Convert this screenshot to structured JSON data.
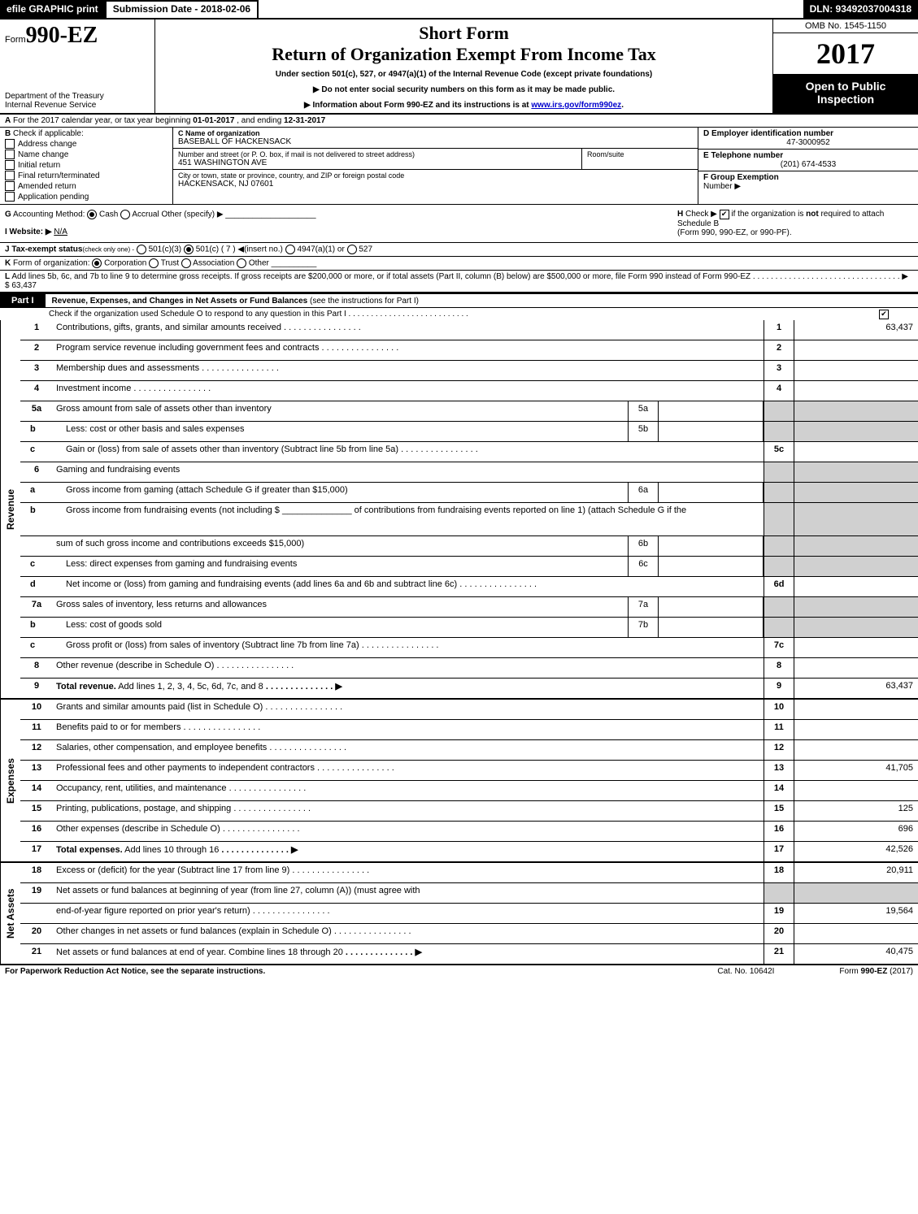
{
  "topbar": {
    "efile": "efile GRAPHIC print",
    "submission": "Submission Date - 2018-02-06",
    "dln": "DLN: 93492037004318"
  },
  "header": {
    "form_prefix": "Form",
    "form_num": "990-EZ",
    "dept1": "Department of the Treasury",
    "dept2": "Internal Revenue Service",
    "short_form": "Short Form",
    "return_title": "Return of Organization Exempt From Income Tax",
    "under_section": "Under section 501(c), 527, or 4947(a)(1) of the Internal Revenue Code (except private foundations)",
    "arrow1": "▶ Do not enter social security numbers on this form as it may be made public.",
    "arrow2_prefix": "▶ Information about Form 990-EZ and its instructions is at ",
    "arrow2_link": "www.irs.gov/form990ez",
    "arrow2_suffix": ".",
    "omb": "OMB No. 1545-1150",
    "year": "2017",
    "open_public1": "Open to Public",
    "open_public2": "Inspection"
  },
  "section_A": {
    "label": "A",
    "text_prefix": "For the 2017 calendar year, or tax year beginning ",
    "begin": "01-01-2017",
    "text_mid": ", and ending ",
    "end": "12-31-2017"
  },
  "section_B": {
    "label": "B",
    "title": "Check if applicable:",
    "items": [
      {
        "label": "Address change",
        "checked": false
      },
      {
        "label": "Name change",
        "checked": false
      },
      {
        "label": "Initial return",
        "checked": false
      },
      {
        "label": "Final return/terminated",
        "checked": false
      },
      {
        "label": "Amended return",
        "checked": false
      },
      {
        "label": "Application pending",
        "checked": false
      }
    ]
  },
  "section_C": {
    "name_label": "C Name of organization",
    "name_val": "BASEBALL OF HACKENSACK",
    "street_label": "Number and street (or P. O. box, if mail is not delivered to street address)",
    "street_val": "451 WASHINGTON AVE",
    "room_label": "Room/suite",
    "city_label": "City or town, state or province, country, and ZIP or foreign postal code",
    "city_val": "HACKENSACK, NJ  07601"
  },
  "section_D": {
    "label": "D Employer identification number",
    "val": "47-3000952"
  },
  "section_E": {
    "label": "E Telephone number",
    "val": "(201) 674-4533"
  },
  "section_F": {
    "label": "F Group Exemption",
    "label2": "Number  ▶"
  },
  "section_G": {
    "label": "G",
    "text": "Accounting Method:",
    "cash": "Cash",
    "accrual": "Accrual",
    "other": "Other (specify) ▶"
  },
  "section_H": {
    "label": "H",
    "text1": "Check ▶",
    "text2": "if the organization is ",
    "text3": "not",
    "text4": " required to attach Schedule B",
    "text5": "(Form 990, 990-EZ, or 990-PF)."
  },
  "section_I": {
    "label": "I Website: ▶",
    "val": "N/A"
  },
  "section_J": {
    "label": "J Tax-exempt status",
    "note": "(check only one) -",
    "o1": "501(c)(3)",
    "o2": "501(c) ( 7 ) ◀(insert no.)",
    "o3": "4947(a)(1) or",
    "o4": "527"
  },
  "section_K": {
    "label": "K",
    "text": "Form of organization:",
    "corp": "Corporation",
    "trust": "Trust",
    "assoc": "Association",
    "other": "Other"
  },
  "section_L": {
    "label": "L",
    "text": "Add lines 5b, 6c, and 7b to line 9 to determine gross receipts. If gross receipts are $200,000 or more, or if total assets (Part II, column (B) below) are $500,000 or more, file Form 990 instead of Form 990-EZ",
    "arrow": "▶",
    "amount": "$ 63,437"
  },
  "part1": {
    "label": "Part I",
    "title": "Revenue, Expenses, and Changes in Net Assets or Fund Balances ",
    "note": "(see the instructions for Part I)",
    "check_line": "Check if the organization used Schedule O to respond to any question in this Part I"
  },
  "sections": [
    {
      "side": "Revenue",
      "rows": [
        {
          "num": "1",
          "desc": "Contributions, gifts, grants, and similar amounts received",
          "boxnum": "1",
          "boxval": "63,437"
        },
        {
          "num": "2",
          "desc": "Program service revenue including government fees and contracts",
          "boxnum": "2",
          "boxval": ""
        },
        {
          "num": "3",
          "desc": "Membership dues and assessments",
          "boxnum": "3",
          "boxval": ""
        },
        {
          "num": "4",
          "desc": "Investment income",
          "boxnum": "4",
          "boxval": ""
        },
        {
          "num": "5a",
          "desc": "Gross amount from sale of assets other than inventory",
          "inner_num": "5a",
          "shaded_box": true
        },
        {
          "num": "b",
          "desc": "Less: cost or other basis and sales expenses",
          "inner_num": "5b",
          "shaded_box": true,
          "sub": true
        },
        {
          "num": "c",
          "desc": "Gain or (loss) from sale of assets other than inventory (Subtract line 5b from line 5a)",
          "boxnum": "5c",
          "boxval": "",
          "sub": true
        },
        {
          "num": "6",
          "desc": "Gaming and fundraising events",
          "shaded_box": true
        },
        {
          "num": "a",
          "desc": "Gross income from gaming (attach Schedule G if greater than $15,000)",
          "inner_num": "6a",
          "shaded_box": true,
          "sub": true
        },
        {
          "num": "b",
          "desc": "Gross income from fundraising events (not including $ ______________ of contributions from fundraising events reported on line 1) (attach Schedule G if the",
          "shaded_box": true,
          "sub": true,
          "tall": true
        },
        {
          "num": "",
          "desc": "sum of such gross income and contributions exceeds $15,000)",
          "inner_num": "6b",
          "shaded_box": true
        },
        {
          "num": "c",
          "desc": "Less: direct expenses from gaming and fundraising events",
          "inner_num": "6c",
          "shaded_box": true,
          "sub": true
        },
        {
          "num": "d",
          "desc": "Net income or (loss) from gaming and fundraising events (add lines 6a and 6b and subtract line 6c)",
          "boxnum": "6d",
          "boxval": "",
          "sub": true
        },
        {
          "num": "7a",
          "desc": "Gross sales of inventory, less returns and allowances",
          "inner_num": "7a",
          "shaded_box": true
        },
        {
          "num": "b",
          "desc": "Less: cost of goods sold",
          "inner_num": "7b",
          "shaded_box": true,
          "sub": true
        },
        {
          "num": "c",
          "desc": "Gross profit or (loss) from sales of inventory (Subtract line 7b from line 7a)",
          "boxnum": "7c",
          "boxval": "",
          "sub": true
        },
        {
          "num": "8",
          "desc": "Other revenue (describe in Schedule O)",
          "boxnum": "8",
          "boxval": ""
        },
        {
          "num": "9",
          "desc": "Total revenue. Add lines 1, 2, 3, 4, 5c, 6d, 7c, and 8",
          "boxnum": "9",
          "boxval": "63,437",
          "bold": true,
          "arrow": true
        }
      ]
    },
    {
      "side": "Expenses",
      "rows": [
        {
          "num": "10",
          "desc": "Grants and similar amounts paid (list in Schedule O)",
          "boxnum": "10",
          "boxval": ""
        },
        {
          "num": "11",
          "desc": "Benefits paid to or for members",
          "boxnum": "11",
          "boxval": ""
        },
        {
          "num": "12",
          "desc": "Salaries, other compensation, and employee benefits",
          "boxnum": "12",
          "boxval": ""
        },
        {
          "num": "13",
          "desc": "Professional fees and other payments to independent contractors",
          "boxnum": "13",
          "boxval": "41,705"
        },
        {
          "num": "14",
          "desc": "Occupancy, rent, utilities, and maintenance",
          "boxnum": "14",
          "boxval": ""
        },
        {
          "num": "15",
          "desc": "Printing, publications, postage, and shipping",
          "boxnum": "15",
          "boxval": "125"
        },
        {
          "num": "16",
          "desc": "Other expenses (describe in Schedule O)",
          "boxnum": "16",
          "boxval": "696"
        },
        {
          "num": "17",
          "desc": "Total expenses. Add lines 10 through 16",
          "boxnum": "17",
          "boxval": "42,526",
          "bold": true,
          "arrow": true
        }
      ]
    },
    {
      "side": "Net Assets",
      "rows": [
        {
          "num": "18",
          "desc": "Excess or (deficit) for the year (Subtract line 17 from line 9)",
          "boxnum": "18",
          "boxval": "20,911"
        },
        {
          "num": "19",
          "desc": "Net assets or fund balances at beginning of year (from line 27, column (A)) (must agree with",
          "shaded_box": true
        },
        {
          "num": "",
          "desc": "end-of-year figure reported on prior year's return)",
          "boxnum": "19",
          "boxval": "19,564"
        },
        {
          "num": "20",
          "desc": "Other changes in net assets or fund balances (explain in Schedule O)",
          "boxnum": "20",
          "boxval": ""
        },
        {
          "num": "21",
          "desc": "Net assets or fund balances at end of year. Combine lines 18 through 20",
          "boxnum": "21",
          "boxval": "40,475",
          "arrow": true
        }
      ]
    }
  ],
  "footer": {
    "left": "For Paperwork Reduction Act Notice, see the separate instructions.",
    "mid": "Cat. No. 10642I",
    "right_prefix": "Form ",
    "right_bold": "990-EZ",
    "right_suffix": " (2017)"
  },
  "colors": {
    "black": "#000000",
    "white": "#ffffff",
    "shaded": "#d0d0d0",
    "link": "#0000cc"
  }
}
